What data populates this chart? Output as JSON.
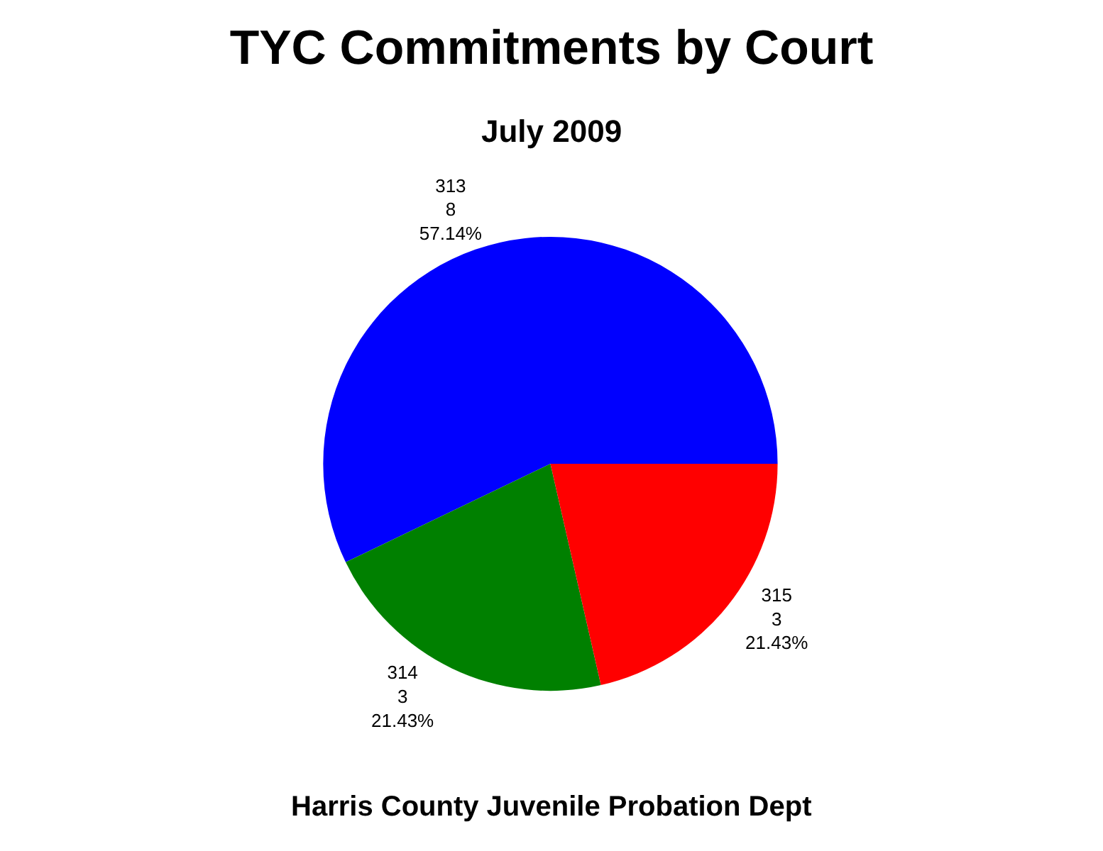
{
  "chart_data": {
    "type": "pie",
    "title": "TYC Commitments by Court",
    "subtitle": "July 2009",
    "categories": [
      "313",
      "314",
      "315"
    ],
    "values": [
      57.14,
      21.43,
      21.43
    ],
    "colors": [
      "#0000ff",
      "#008000",
      "#ff0000"
    ],
    "value_labels": [
      "8\n57.14%",
      "3\n21.43%",
      "3\n21.43%"
    ],
    "annotations": [
      "Harris County Juvenile Probation Dept"
    ]
  }
}
